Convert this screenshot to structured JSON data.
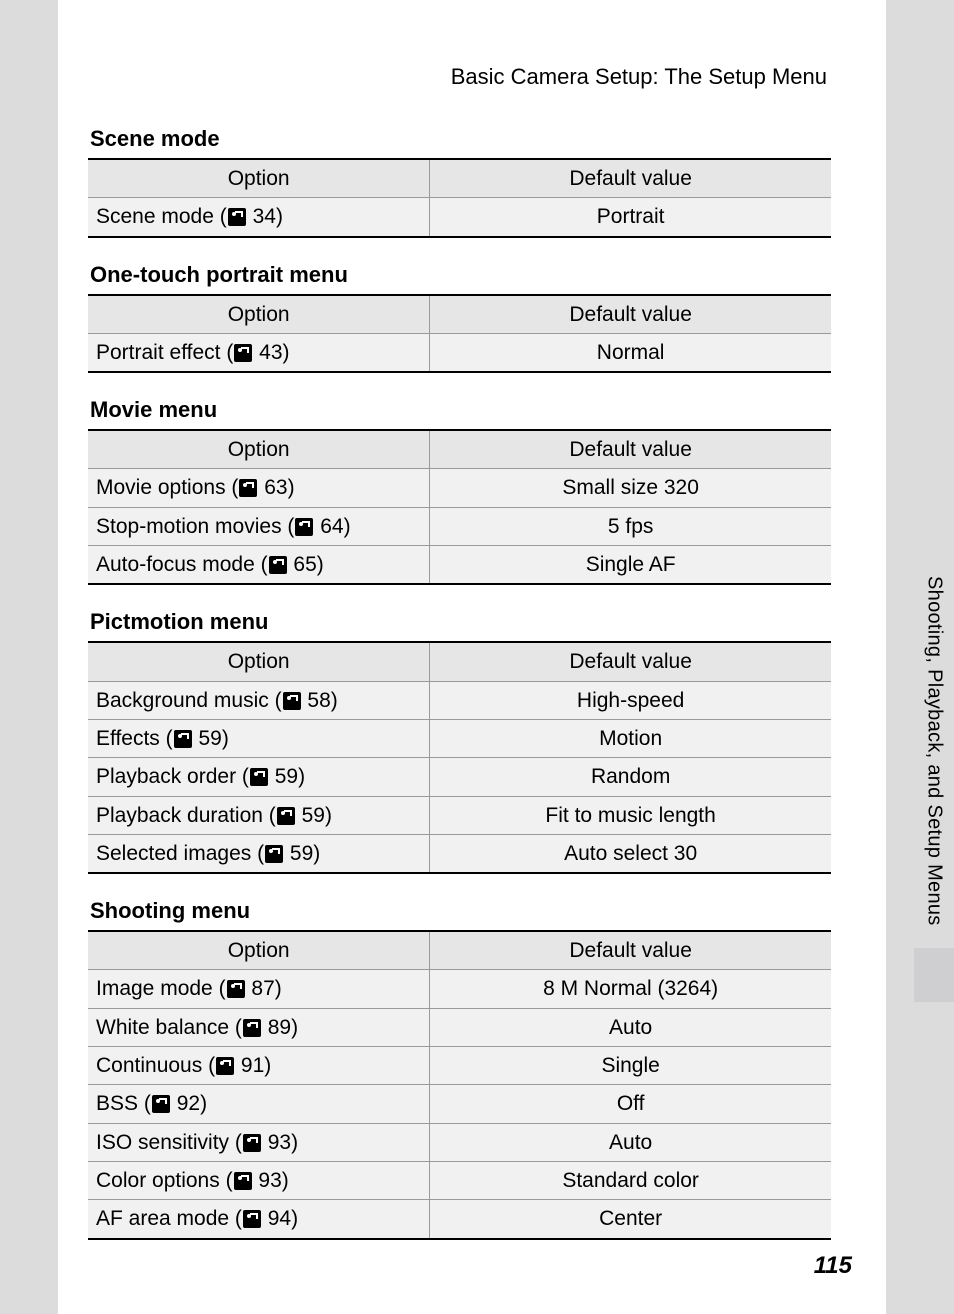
{
  "header": "Basic Camera Setup: The Setup Menu",
  "side_tab": "Shooting, Playback, and Setup Menus",
  "page_number": "115",
  "table_headers": {
    "option": "Option",
    "default": "Default value"
  },
  "sections": [
    {
      "title": "Scene mode",
      "rows": [
        {
          "option_pre": "Scene mode (",
          "page": "34",
          "option_post": ")",
          "default": "Portrait"
        }
      ]
    },
    {
      "title": "One-touch portrait menu",
      "rows": [
        {
          "option_pre": "Portrait effect (",
          "page": "43",
          "option_post": ")",
          "default": "Normal"
        }
      ]
    },
    {
      "title": "Movie menu",
      "rows": [
        {
          "option_pre": "Movie options (",
          "page": "63",
          "option_post": ")",
          "default": "Small size 320"
        },
        {
          "option_pre": "Stop-motion movies (",
          "page": "64",
          "option_post": ")",
          "default": "5 fps"
        },
        {
          "option_pre": "Auto-focus mode (",
          "page": "65",
          "option_post": ")",
          "default": "Single AF"
        }
      ]
    },
    {
      "title": "Pictmotion menu",
      "rows": [
        {
          "option_pre": "Background music (",
          "page": "58",
          "option_post": ")",
          "default": "High-speed"
        },
        {
          "option_pre": "Effects (",
          "page": "59",
          "option_post": ")",
          "default": "Motion"
        },
        {
          "option_pre": "Playback order (",
          "page": "59",
          "option_post": ")",
          "default": "Random"
        },
        {
          "option_pre": "Playback duration (",
          "page": "59",
          "option_post": ")",
          "default": "Fit to music length"
        },
        {
          "option_pre": "Selected images (",
          "page": "59",
          "option_post": ")",
          "default": "Auto select 30"
        }
      ]
    },
    {
      "title": "Shooting menu",
      "rows": [
        {
          "option_pre": "Image mode (",
          "page": "87",
          "option_post": ")",
          "default": "8 M Normal (3264)"
        },
        {
          "option_pre": "White balance (",
          "page": "89",
          "option_post": ")",
          "default": "Auto"
        },
        {
          "option_pre": "Continuous (",
          "page": "91",
          "option_post": ")",
          "default": "Single"
        },
        {
          "option_pre": "BSS (",
          "page": "92",
          "option_post": ")",
          "default": "Off"
        },
        {
          "option_pre": "ISO sensitivity (",
          "page": "93",
          "option_post": ")",
          "default": "Auto"
        },
        {
          "option_pre": "Color options (",
          "page": "93",
          "option_post": ")",
          "default": "Standard color"
        },
        {
          "option_pre": "AF area mode (",
          "page": "94",
          "option_post": ")",
          "default": "Center"
        }
      ]
    }
  ]
}
